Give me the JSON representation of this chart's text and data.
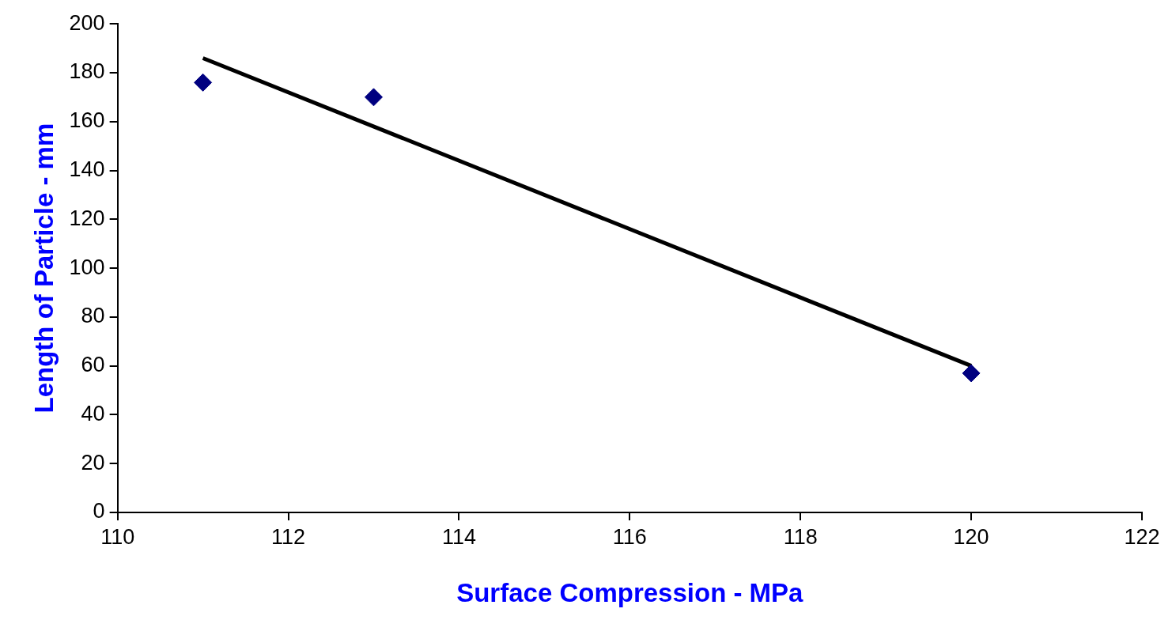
{
  "chart_data": {
    "type": "scatter",
    "xlabel": "Surface Compression - MPa",
    "ylabel": "Length of Particle - mm",
    "xlim": [
      110,
      122
    ],
    "xticks": [
      110,
      112,
      114,
      116,
      118,
      120,
      122
    ],
    "ylim": [
      0,
      200
    ],
    "yticks": [
      0,
      20,
      40,
      60,
      80,
      100,
      120,
      140,
      160,
      180,
      200
    ],
    "grid": false,
    "marker": "diamond",
    "series": [
      {
        "color": "#000080",
        "x": [
          111,
          113,
          120
        ],
        "values": [
          176,
          170,
          57
        ]
      },
      {
        "type": "line",
        "color": "#000000",
        "x": [
          111,
          120
        ],
        "values": [
          186,
          60
        ],
        "marker": "none"
      }
    ]
  }
}
